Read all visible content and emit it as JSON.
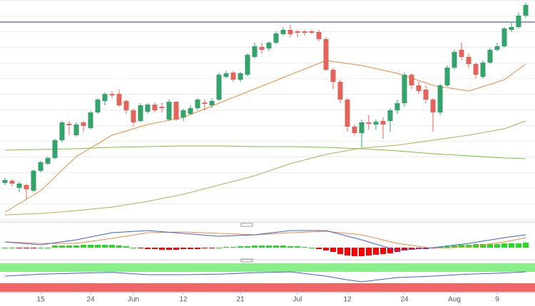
{
  "chart_data": {
    "type": "candlestick",
    "categories": [
      null,
      null,
      null,
      null,
      null,
      "15",
      null,
      null,
      null,
      null,
      null,
      null,
      "24",
      null,
      null,
      null,
      null,
      null,
      "Jun",
      null,
      null,
      null,
      null,
      null,
      null,
      "12",
      null,
      null,
      null,
      null,
      null,
      null,
      null,
      "21",
      null,
      null,
      null,
      null,
      null,
      null,
      null,
      "Jul",
      null,
      null,
      null,
      null,
      null,
      null,
      "12",
      null,
      null,
      null,
      null,
      null,
      null,
      null,
      "24",
      null,
      null,
      null,
      null,
      null,
      null,
      "Aug",
      null,
      null,
      null,
      null,
      null,
      "9",
      null,
      null,
      null,
      null
    ],
    "open": [
      53,
      56,
      46,
      50,
      42,
      70,
      80,
      88,
      113,
      136,
      120,
      138,
      130,
      152,
      168,
      178,
      178,
      168,
      155,
      140,
      153,
      163,
      160,
      142,
      167,
      145,
      150,
      158,
      166,
      162,
      170,
      202,
      208,
      198,
      205,
      230,
      244,
      242,
      250,
      262,
      268,
      266,
      266,
      266,
      265,
      255,
      212,
      195,
      170,
      132,
      123,
      138,
      135,
      140,
      140,
      155,
      165,
      205,
      190,
      184,
      170,
      152,
      190,
      215,
      240,
      230,
      220,
      202,
      222,
      240,
      245,
      268,
      272,
      288
    ],
    "high": [
      60,
      58,
      55,
      52,
      72,
      84,
      90,
      115,
      140,
      140,
      138,
      140,
      154,
      172,
      180,
      182,
      184,
      170,
      157,
      165,
      165,
      166,
      166,
      170,
      168,
      157,
      162,
      172,
      170,
      172,
      208,
      210,
      210,
      209,
      235,
      250,
      250,
      252,
      266,
      272,
      275,
      268,
      268,
      268,
      268,
      258,
      215,
      198,
      172,
      135,
      142,
      148,
      142,
      145,
      158,
      170,
      208,
      207,
      195,
      190,
      172,
      192,
      218,
      240,
      250,
      235,
      222,
      225,
      243,
      250,
      272,
      278,
      292,
      306
    ],
    "low": [
      50,
      48,
      40,
      30,
      40,
      68,
      78,
      86,
      110,
      120,
      118,
      125,
      128,
      150,
      162,
      172,
      160,
      150,
      132,
      138,
      150,
      152,
      152,
      140,
      140,
      140,
      148,
      155,
      155,
      158,
      168,
      200,
      195,
      195,
      203,
      228,
      235,
      238,
      248,
      260,
      258,
      258,
      260,
      262,
      252,
      210,
      185,
      165,
      125,
      120,
      103,
      128,
      128,
      115,
      125,
      150,
      160,
      185,
      178,
      165,
      125,
      148,
      188,
      212,
      225,
      215,
      200,
      200,
      220,
      238,
      243,
      265,
      270,
      285
    ],
    "close": [
      57,
      52,
      52,
      44,
      70,
      82,
      88,
      113,
      138,
      134,
      135,
      133,
      152,
      170,
      178,
      176,
      162,
      155,
      138,
      162,
      163,
      155,
      158,
      167,
      142,
      155,
      158,
      170,
      164,
      168,
      205,
      207,
      198,
      207,
      233,
      245,
      240,
      250,
      263,
      268,
      262,
      264,
      264,
      264,
      255,
      212,
      195,
      170,
      132,
      123,
      138,
      136,
      139,
      135,
      155,
      165,
      205,
      190,
      182,
      170,
      152,
      190,
      215,
      237,
      230,
      220,
      205,
      222,
      240,
      245,
      270,
      272,
      288,
      303
    ],
    "up_color": "#33a36b",
    "down_color": "#e2645a",
    "ylim": [
      0,
      310
    ],
    "reference_line": {
      "value": 279,
      "color": "#2b3f73"
    },
    "moving_averages": [
      {
        "color": "#f08a3c",
        "x": [
          0,
          5,
          10,
          15,
          20,
          25,
          30,
          35,
          40,
          45,
          50,
          55,
          60,
          65,
          70,
          73
        ],
        "values": [
          12,
          42,
          90,
          120,
          135,
          145,
          165,
          185,
          205,
          225,
          218,
          207,
          190,
          182,
          198,
          220
        ]
      },
      {
        "color": "#b5ad55",
        "x": [
          0,
          5,
          10,
          15,
          20,
          25,
          30,
          35,
          40,
          45,
          50,
          55,
          60,
          65,
          70,
          73
        ],
        "values": [
          8,
          10,
          14,
          19,
          27,
          37,
          50,
          63,
          80,
          93,
          102,
          106,
          113,
          120,
          129,
          140
        ]
      },
      {
        "color": "#7fbf3f",
        "x": [
          0,
          5,
          10,
          15,
          20,
          25,
          30,
          35,
          40,
          45,
          50,
          55,
          60,
          65,
          70,
          73
        ],
        "values": [
          99,
          100,
          101,
          103,
          104,
          105,
          105,
          104,
          104,
          103,
          101,
          98,
          94,
          91,
          88,
          87
        ]
      }
    ],
    "macd": {
      "ylim": [
        -14,
        30
      ],
      "x": [
        0,
        5,
        10,
        15,
        20,
        25,
        30,
        35,
        40,
        45,
        50,
        55,
        60,
        65,
        70,
        73
      ],
      "macd_line": {
        "color": "#3f5fe0",
        "values": [
          8,
          4,
          11,
          21,
          24,
          20,
          16,
          18,
          24,
          24,
          11,
          -4,
          0,
          6,
          14,
          18
        ]
      },
      "signal_line": {
        "color": "#f08a3c",
        "values": [
          8,
          6,
          6,
          13,
          21,
          22,
          20,
          18,
          21,
          23,
          18,
          6,
          -1,
          1,
          8,
          14
        ]
      },
      "histogram": [
        0,
        0,
        -1,
        -1,
        -1,
        0,
        0,
        3,
        3,
        3,
        3,
        4,
        4,
        4,
        4,
        4,
        3,
        2,
        0,
        -1,
        -2,
        -2,
        -3,
        -3,
        -3,
        -2,
        -2,
        -2,
        -1,
        -1,
        0,
        1,
        1,
        2,
        2,
        3,
        3,
        3,
        3,
        3,
        2,
        2,
        1,
        0,
        -2,
        -4,
        -6,
        -9,
        -11,
        -12,
        -12,
        -11,
        -10,
        -9,
        -8,
        -6,
        -4,
        -3,
        -2,
        -2,
        -1,
        1,
        2,
        3,
        4,
        4,
        5,
        5,
        5,
        5,
        6,
        6,
        6,
        7
      ],
      "up_color": "#22dd22",
      "down_color": "#ff0000"
    },
    "rsi": {
      "ylim": [
        0,
        100
      ],
      "upper_band": {
        "range": [
          70,
          100
        ],
        "color": "#88ee88"
      },
      "lower_band": {
        "range": [
          0,
          30
        ],
        "color": "#ee6666"
      },
      "color": "#3f5fe0",
      "x": [
        0,
        5,
        10,
        15,
        20,
        25,
        30,
        35,
        40,
        45,
        48,
        50,
        55,
        60,
        65,
        70,
        73
      ],
      "values": [
        55,
        62,
        65,
        68,
        60,
        60,
        62,
        67,
        70,
        55,
        42,
        35,
        50,
        55,
        62,
        66,
        70
      ]
    }
  }
}
